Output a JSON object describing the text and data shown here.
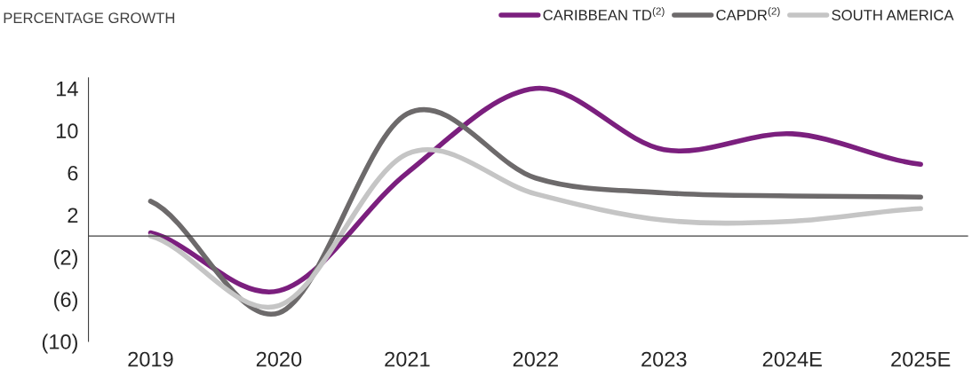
{
  "chart_data": {
    "type": "line",
    "ylabel": "PERCENTAGE GROWTH",
    "categories": [
      "2019",
      "2020",
      "2021",
      "2022",
      "2023",
      "2024E",
      "2025E"
    ],
    "series": [
      {
        "name": "CARIBBEAN TD$^{(2)}$",
        "color": "#7b1f7e",
        "values": [
          0.3,
          -5.2,
          6,
          14,
          8.2,
          9.7,
          6.8
        ]
      },
      {
        "name": "CAPDR$^{(2)}$",
        "color": "#6d6a6b",
        "values": [
          3.3,
          -7.3,
          11.6,
          5.5,
          4.1,
          3.8,
          3.7
        ]
      },
      {
        "name": "SOUTH AMERICA",
        "color": "#c5c5c5",
        "values": [
          0,
          -6.6,
          7.8,
          4.0,
          1.5,
          1.4,
          2.6
        ]
      }
    ],
    "ylim": [
      -10,
      15
    ],
    "yticks": [
      {
        "value": 14,
        "label": "14"
      },
      {
        "value": 10,
        "label": "10"
      },
      {
        "value": 6,
        "label": "6"
      },
      {
        "value": 2,
        "label": "2"
      },
      {
        "value": -2,
        "label": "(2)"
      },
      {
        "value": -6,
        "label": "(6)"
      },
      {
        "value": -10,
        "label": "(10)"
      }
    ],
    "ref_lines": [
      {
        "axis": "y",
        "value": 0,
        "color": "#404040"
      }
    ],
    "legend": "top right",
    "grid": false,
    "marker": "none",
    "line_style": "solid"
  }
}
